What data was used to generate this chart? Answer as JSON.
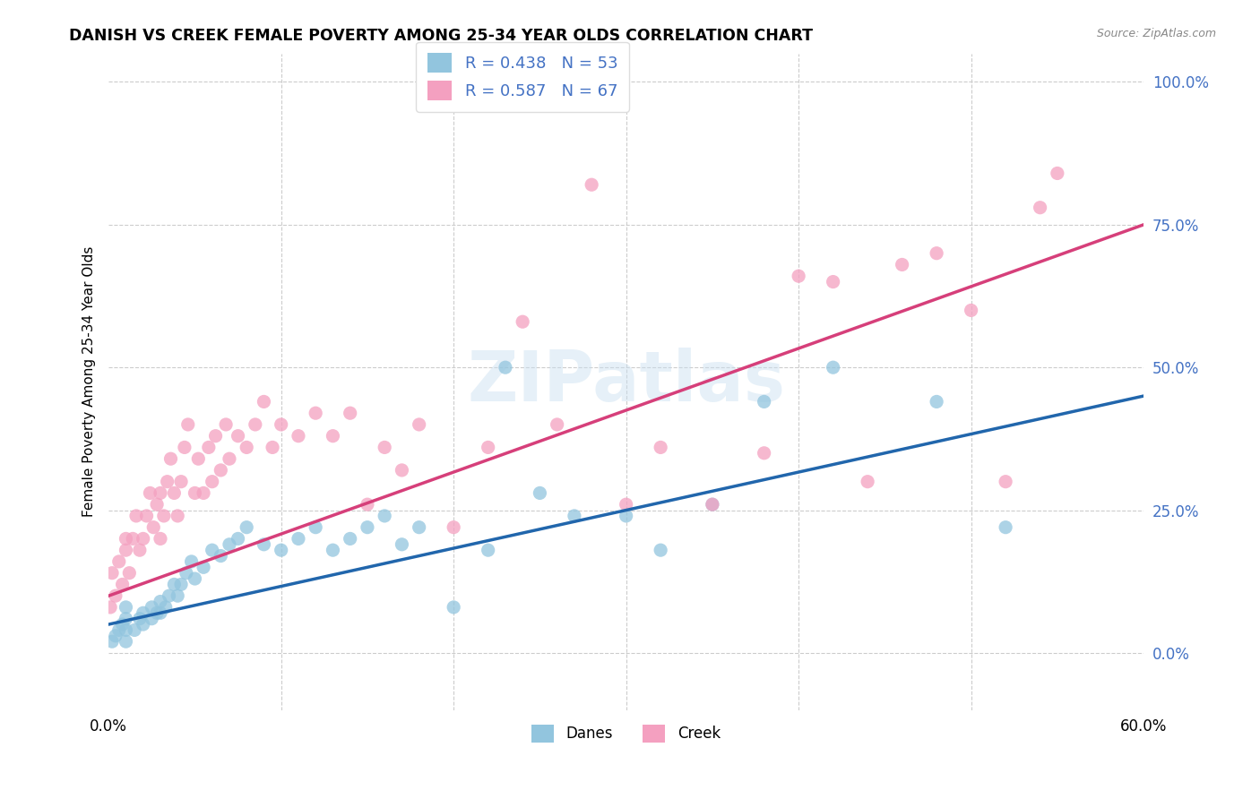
{
  "title": "DANISH VS CREEK FEMALE POVERTY AMONG 25-34 YEAR OLDS CORRELATION CHART",
  "source": "Source: ZipAtlas.com",
  "ylabel": "Female Poverty Among 25-34 Year Olds",
  "xlim": [
    0.0,
    0.6
  ],
  "ylim": [
    -0.05,
    1.05
  ],
  "y_ticks_right": [
    0.0,
    0.25,
    0.5,
    0.75,
    1.0
  ],
  "y_tick_labels_right": [
    "0.0%",
    "25.0%",
    "50.0%",
    "75.0%",
    "100.0%"
  ],
  "danes_R": 0.438,
  "danes_N": 53,
  "creek_R": 0.587,
  "creek_N": 67,
  "danes_color": "#92c5de",
  "creek_color": "#f4a0c0",
  "danes_line_color": "#2166ac",
  "creek_line_color": "#d63f7a",
  "watermark": "ZIPatlas",
  "background_color": "#ffffff",
  "danes_scatter_x": [
    0.002,
    0.004,
    0.006,
    0.008,
    0.01,
    0.01,
    0.01,
    0.01,
    0.015,
    0.018,
    0.02,
    0.02,
    0.025,
    0.025,
    0.028,
    0.03,
    0.03,
    0.033,
    0.035,
    0.038,
    0.04,
    0.042,
    0.045,
    0.048,
    0.05,
    0.055,
    0.06,
    0.065,
    0.07,
    0.075,
    0.08,
    0.09,
    0.1,
    0.11,
    0.12,
    0.13,
    0.14,
    0.15,
    0.16,
    0.17,
    0.18,
    0.2,
    0.22,
    0.23,
    0.25,
    0.27,
    0.3,
    0.32,
    0.35,
    0.38,
    0.42,
    0.48,
    0.52
  ],
  "danes_scatter_y": [
    0.02,
    0.03,
    0.04,
    0.05,
    0.02,
    0.04,
    0.06,
    0.08,
    0.04,
    0.06,
    0.05,
    0.07,
    0.06,
    0.08,
    0.07,
    0.07,
    0.09,
    0.08,
    0.1,
    0.12,
    0.1,
    0.12,
    0.14,
    0.16,
    0.13,
    0.15,
    0.18,
    0.17,
    0.19,
    0.2,
    0.22,
    0.19,
    0.18,
    0.2,
    0.22,
    0.18,
    0.2,
    0.22,
    0.24,
    0.19,
    0.22,
    0.08,
    0.18,
    0.5,
    0.28,
    0.24,
    0.24,
    0.18,
    0.26,
    0.44,
    0.5,
    0.44,
    0.22
  ],
  "creek_scatter_x": [
    0.001,
    0.002,
    0.004,
    0.006,
    0.008,
    0.01,
    0.01,
    0.012,
    0.014,
    0.016,
    0.018,
    0.02,
    0.022,
    0.024,
    0.026,
    0.028,
    0.03,
    0.03,
    0.032,
    0.034,
    0.036,
    0.038,
    0.04,
    0.042,
    0.044,
    0.046,
    0.05,
    0.052,
    0.055,
    0.058,
    0.06,
    0.062,
    0.065,
    0.068,
    0.07,
    0.075,
    0.08,
    0.085,
    0.09,
    0.095,
    0.1,
    0.11,
    0.12,
    0.13,
    0.14,
    0.15,
    0.16,
    0.17,
    0.18,
    0.2,
    0.22,
    0.24,
    0.26,
    0.28,
    0.3,
    0.32,
    0.35,
    0.38,
    0.4,
    0.42,
    0.44,
    0.46,
    0.48,
    0.5,
    0.52,
    0.54,
    0.55
  ],
  "creek_scatter_y": [
    0.08,
    0.14,
    0.1,
    0.16,
    0.12,
    0.18,
    0.2,
    0.14,
    0.2,
    0.24,
    0.18,
    0.2,
    0.24,
    0.28,
    0.22,
    0.26,
    0.2,
    0.28,
    0.24,
    0.3,
    0.34,
    0.28,
    0.24,
    0.3,
    0.36,
    0.4,
    0.28,
    0.34,
    0.28,
    0.36,
    0.3,
    0.38,
    0.32,
    0.4,
    0.34,
    0.38,
    0.36,
    0.4,
    0.44,
    0.36,
    0.4,
    0.38,
    0.42,
    0.38,
    0.42,
    0.26,
    0.36,
    0.32,
    0.4,
    0.22,
    0.36,
    0.58,
    0.4,
    0.82,
    0.26,
    0.36,
    0.26,
    0.35,
    0.66,
    0.65,
    0.3,
    0.68,
    0.7,
    0.6,
    0.3,
    0.78,
    0.84
  ]
}
